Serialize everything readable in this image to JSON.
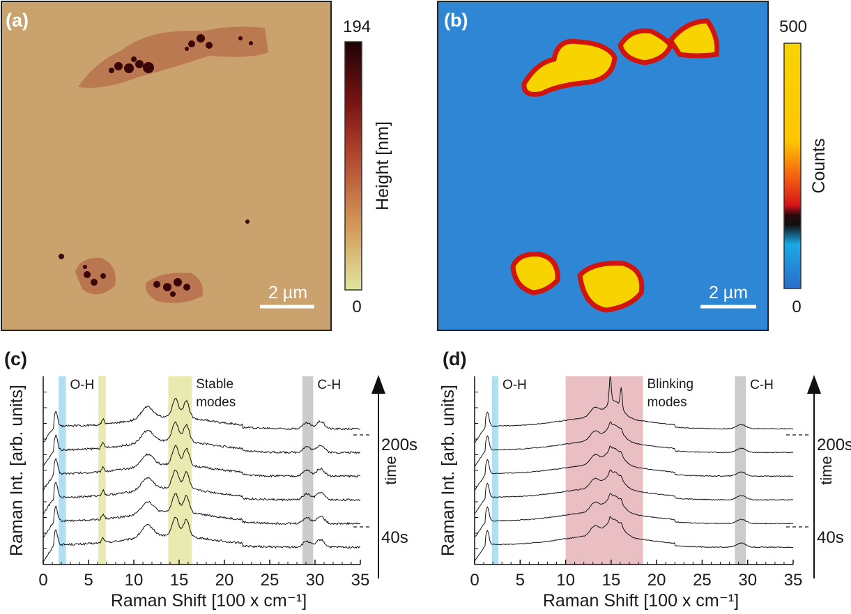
{
  "panels": {
    "a": {
      "label": "(a)",
      "scale_bar": "2 µm",
      "colorbar": {
        "max": "194",
        "min": "0",
        "label": "Height [nm]"
      },
      "colors": {
        "background": "#c9a26e",
        "particle": "#6b1414",
        "dark": "#2a0506"
      }
    },
    "b": {
      "label": "(b)",
      "scale_bar": "2 µm",
      "colorbar": {
        "max": "500",
        "min": "0",
        "label": "Counts"
      },
      "colors": {
        "background": "#2f86d4",
        "hot": "#f7d400",
        "edge": "#d2140f",
        "rim": "#0a1240"
      }
    },
    "c": {
      "label": "(c)"
    },
    "d": {
      "label": "(d)"
    }
  },
  "chart_data": [
    {
      "panel": "c",
      "type": "line",
      "xlabel": "Raman Shift [100 x cm⁻¹]",
      "ylabel": "Raman Int. [arb. units]",
      "xlim": [
        0,
        35
      ],
      "xticks": [
        "0",
        "5",
        "10",
        "15",
        "20",
        "25",
        "30",
        "35"
      ],
      "bands": [
        {
          "from": 1.7,
          "to": 2.5,
          "color": "#a8dcef",
          "label": "O-H"
        },
        {
          "from": 6.1,
          "to": 6.9,
          "color": "#e6e8a6",
          "label": ""
        },
        {
          "from": 13.8,
          "to": 16.4,
          "color": "#e6e8a6",
          "label": "Stable modes"
        },
        {
          "from": 28.6,
          "to": 29.8,
          "color": "#c7c7c7",
          "label": "C-H"
        }
      ],
      "time_axis": {
        "label": "time",
        "start": "40s",
        "end": "200s"
      },
      "series_count": 6,
      "peaks": [
        {
          "x": 1.4,
          "h": 0.9,
          "w": 0.25
        },
        {
          "x": 6.6,
          "h": 0.3,
          "w": 0.2
        },
        {
          "x": 11.5,
          "h": 0.7,
          "w": 0.9
        },
        {
          "x": 14.6,
          "h": 1.1,
          "w": 0.5
        },
        {
          "x": 15.8,
          "h": 1.0,
          "w": 0.45
        },
        {
          "x": 29.1,
          "h": 0.35,
          "w": 0.6
        },
        {
          "x": 30.6,
          "h": 0.45,
          "w": 0.6
        }
      ]
    },
    {
      "panel": "d",
      "type": "line",
      "xlabel": "Raman Shift [100 x cm⁻¹]",
      "ylabel": "Raman Int. [arb. units]",
      "xlim": [
        0,
        35
      ],
      "xticks": [
        "0",
        "5",
        "10",
        "15",
        "20",
        "25",
        "30",
        "35"
      ],
      "bands": [
        {
          "from": 1.9,
          "to": 2.6,
          "color": "#a8dcef",
          "label": "O-H"
        },
        {
          "from": 10.0,
          "to": 18.5,
          "color": "#e7b8bc",
          "label": "Blinking modes"
        },
        {
          "from": 28.6,
          "to": 29.8,
          "color": "#c7c7c7",
          "label": "C-H"
        }
      ],
      "time_axis": {
        "label": "time",
        "start": "40s",
        "end": "200s"
      },
      "series_count": 6,
      "peaks": [
        {
          "x": 1.4,
          "h": 0.85,
          "w": 0.25
        },
        {
          "x": 13.2,
          "h": 0.55,
          "w": 0.7
        },
        {
          "x": 15.3,
          "h": 1.0,
          "w": 1.2
        },
        {
          "x": 14.9,
          "h": 1.6,
          "w": 0.15
        },
        {
          "x": 16.1,
          "h": 1.2,
          "w": 0.15
        },
        {
          "x": 29.3,
          "h": 0.25,
          "w": 0.7
        }
      ]
    }
  ]
}
